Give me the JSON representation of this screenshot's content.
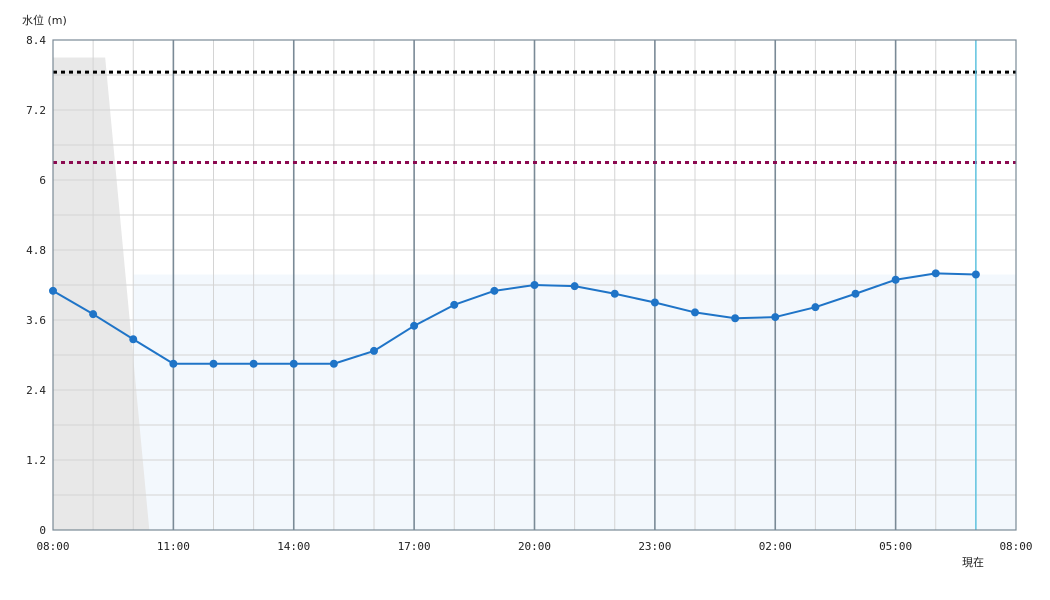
{
  "chart_data": {
    "type": "line",
    "ylabel": "水位 (m)",
    "ylim": [
      0,
      8.4
    ],
    "y_ticks": [
      "0",
      "1.2",
      "2.4",
      "3.6",
      "4.8",
      "6",
      "7.2",
      "8.4"
    ],
    "x_ticks": [
      "08:00",
      "11:00",
      "14:00",
      "17:00",
      "20:00",
      "23:00",
      "02:00",
      "05:00",
      "08:00"
    ],
    "now_label": "現在",
    "grid": true,
    "series": [
      {
        "values": [
          4.1,
          3.7,
          3.27,
          2.85,
          2.85,
          2.85,
          2.85,
          2.85,
          3.07,
          3.5,
          3.86,
          4.1,
          4.2,
          4.18,
          4.05,
          3.9,
          3.73,
          3.63,
          3.65,
          3.82,
          4.05,
          4.29,
          4.4,
          4.38
        ],
        "color": "#1f74c7"
      }
    ],
    "reference_lines": [
      {
        "value": 7.85,
        "color": "#000000",
        "style": "dotted"
      },
      {
        "value": 6.3,
        "color": "#8b0a50",
        "style": "dotted"
      }
    ],
    "now_index": 23,
    "colors": {
      "past_shade": "#e8e8e8",
      "forecast_band": "#f3f8fd",
      "now_line": "#5fc3e0",
      "major_grid": "#7a8a96",
      "minor_grid": "#d4d4d4"
    }
  }
}
